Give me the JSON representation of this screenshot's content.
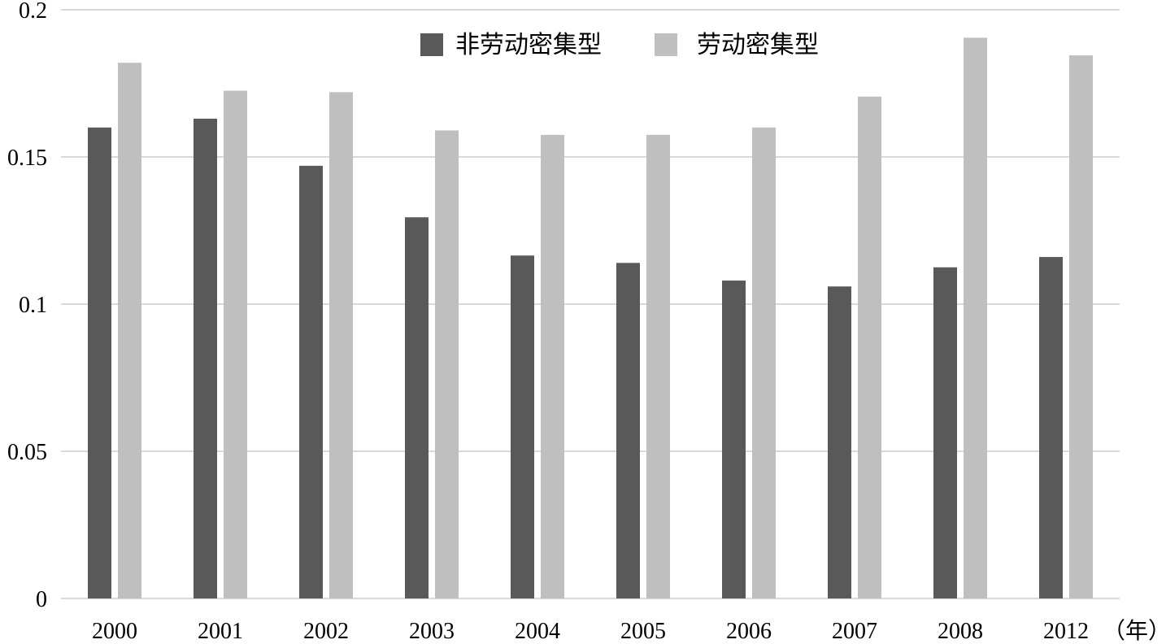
{
  "chart_data": {
    "type": "bar",
    "title": "",
    "xlabel": "（年）",
    "ylabel": "",
    "ylim": [
      0,
      0.2
    ],
    "yticks": [
      "0",
      "0.05",
      "0.1",
      "0.15",
      "0.2"
    ],
    "ytick_values": [
      0,
      0.05,
      0.1,
      0.15,
      0.2
    ],
    "grid": true,
    "legend_position": "top-center",
    "categories": [
      "2000",
      "2001",
      "2002",
      "2003",
      "2004",
      "2005",
      "2006",
      "2007",
      "2008",
      "2012"
    ],
    "series": [
      {
        "name": "非劳动密集型",
        "color": "#595959",
        "values": [
          0.16,
          0.163,
          0.147,
          0.1295,
          0.1165,
          0.114,
          0.108,
          0.106,
          0.1125,
          0.116
        ]
      },
      {
        "name": "劳动密集型",
        "color": "#bfbfbf",
        "values": [
          0.182,
          0.1725,
          0.172,
          0.159,
          0.1575,
          0.1575,
          0.16,
          0.1705,
          0.1905,
          0.1845
        ]
      }
    ]
  }
}
